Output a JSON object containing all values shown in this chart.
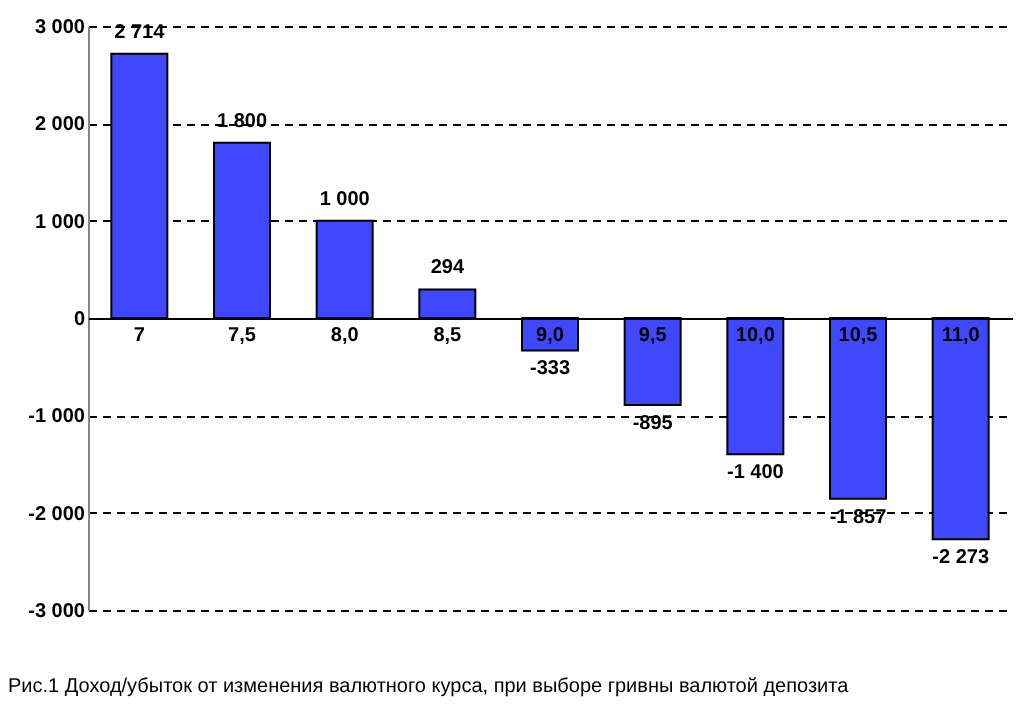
{
  "chart_data": {
    "type": "bar",
    "title": "Рис.1 Доход/убыток  от изменения валютного курса, при выборе  гривны валютой депозита",
    "categories": [
      "7",
      "7,5",
      "8,0",
      "8,5",
      "9,0",
      "9,5",
      "10,0",
      "10,5",
      "11,0"
    ],
    "values": [
      2714,
      1800,
      1000,
      294,
      -333,
      -895,
      -1400,
      -1857,
      -2273
    ],
    "value_labels": [
      "2 714",
      "1 800",
      "1 000",
      "294",
      "-333",
      "-895",
      "-1 400",
      "-1 857",
      "-2 273"
    ],
    "color": "#3f48ff",
    "ylim": [
      -3000,
      3000
    ],
    "yticks": [
      {
        "value": -3000,
        "label": "-3 000"
      },
      {
        "value": -2000,
        "label": "-2 000"
      },
      {
        "value": -1000,
        "label": "-1 000"
      },
      0,
      {
        "value": 1000,
        "label": "1 000"
      },
      {
        "value": 2000,
        "label": "2 000"
      },
      {
        "value": 3000,
        "label": "3 000"
      }
    ],
    "grid": true,
    "line_style": "dashed"
  }
}
